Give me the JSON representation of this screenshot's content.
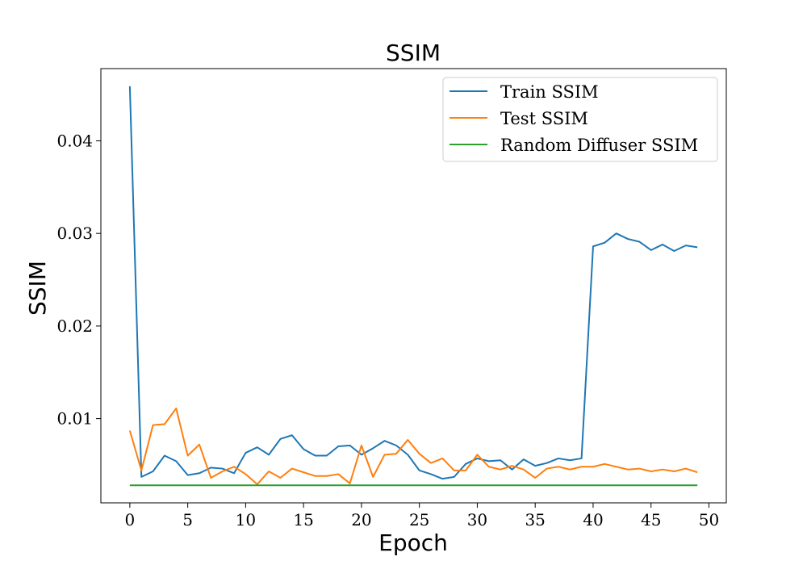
{
  "chart_data": {
    "type": "line",
    "title": "SSIM",
    "xlabel": "Epoch",
    "ylabel": "SSIM",
    "xlim": [
      -2.5,
      51.5
    ],
    "ylim": [
      0.0009,
      0.0478
    ],
    "xticks": [
      0,
      5,
      10,
      15,
      20,
      25,
      30,
      35,
      40,
      45,
      50
    ],
    "yticks": [
      0.01,
      0.02,
      0.03,
      0.04
    ],
    "xtick_labels": [
      "0",
      "5",
      "10",
      "15",
      "20",
      "25",
      "30",
      "35",
      "40",
      "45",
      "50"
    ],
    "ytick_labels": [
      "0.01",
      "0.02",
      "0.03",
      "0.04"
    ],
    "grid": false,
    "legend_position": "top-right",
    "x": [
      0,
      1,
      2,
      3,
      4,
      5,
      6,
      7,
      8,
      9,
      10,
      11,
      12,
      13,
      14,
      15,
      16,
      17,
      18,
      19,
      20,
      21,
      22,
      23,
      24,
      25,
      26,
      27,
      28,
      29,
      30,
      31,
      32,
      33,
      34,
      35,
      36,
      37,
      38,
      39,
      40,
      41,
      42,
      43,
      44,
      45,
      46,
      47,
      48,
      49
    ],
    "series": [
      {
        "name": "Train SSIM",
        "color": "#1f77b4",
        "values": [
          0.0459,
          0.0037,
          0.0043,
          0.006,
          0.0054,
          0.0039,
          0.0041,
          0.0047,
          0.0046,
          0.0041,
          0.0063,
          0.0069,
          0.0061,
          0.0078,
          0.0082,
          0.0067,
          0.006,
          0.006,
          0.007,
          0.0071,
          0.0061,
          0.0068,
          0.0076,
          0.0071,
          0.0061,
          0.0044,
          0.004,
          0.0035,
          0.0037,
          0.0051,
          0.0057,
          0.0054,
          0.0055,
          0.0045,
          0.0056,
          0.0049,
          0.0052,
          0.0057,
          0.0055,
          0.0057,
          0.0286,
          0.029,
          0.03,
          0.0294,
          0.0291,
          0.0282,
          0.0288,
          0.0281,
          0.0287,
          0.0285
        ]
      },
      {
        "name": "Test SSIM",
        "color": "#ff7f0e",
        "values": [
          0.0087,
          0.0044,
          0.0093,
          0.0094,
          0.0111,
          0.006,
          0.0072,
          0.0036,
          0.0043,
          0.0048,
          0.004,
          0.0029,
          0.0043,
          0.0036,
          0.0046,
          0.0042,
          0.0038,
          0.0038,
          0.004,
          0.003,
          0.0071,
          0.0037,
          0.0061,
          0.0062,
          0.0077,
          0.0062,
          0.0052,
          0.0057,
          0.0044,
          0.0044,
          0.0061,
          0.0048,
          0.0045,
          0.0049,
          0.0045,
          0.0036,
          0.0046,
          0.0048,
          0.0045,
          0.0048,
          0.0048,
          0.0051,
          0.0048,
          0.0045,
          0.0046,
          0.0043,
          0.0045,
          0.0043,
          0.0046,
          0.0042
        ]
      },
      {
        "name": "Random Diffuser SSIM",
        "color": "#2ca02c",
        "values": [
          0.0028,
          0.0028,
          0.0028,
          0.0028,
          0.0028,
          0.0028,
          0.0028,
          0.0028,
          0.0028,
          0.0028,
          0.0028,
          0.0028,
          0.0028,
          0.0028,
          0.0028,
          0.0028,
          0.0028,
          0.0028,
          0.0028,
          0.0028,
          0.0028,
          0.0028,
          0.0028,
          0.0028,
          0.0028,
          0.0028,
          0.0028,
          0.0028,
          0.0028,
          0.0028,
          0.0028,
          0.0028,
          0.0028,
          0.0028,
          0.0028,
          0.0028,
          0.0028,
          0.0028,
          0.0028,
          0.0028,
          0.0028,
          0.0028,
          0.0028,
          0.0028,
          0.0028,
          0.0028,
          0.0028,
          0.0028,
          0.0028,
          0.0028
        ]
      }
    ]
  }
}
